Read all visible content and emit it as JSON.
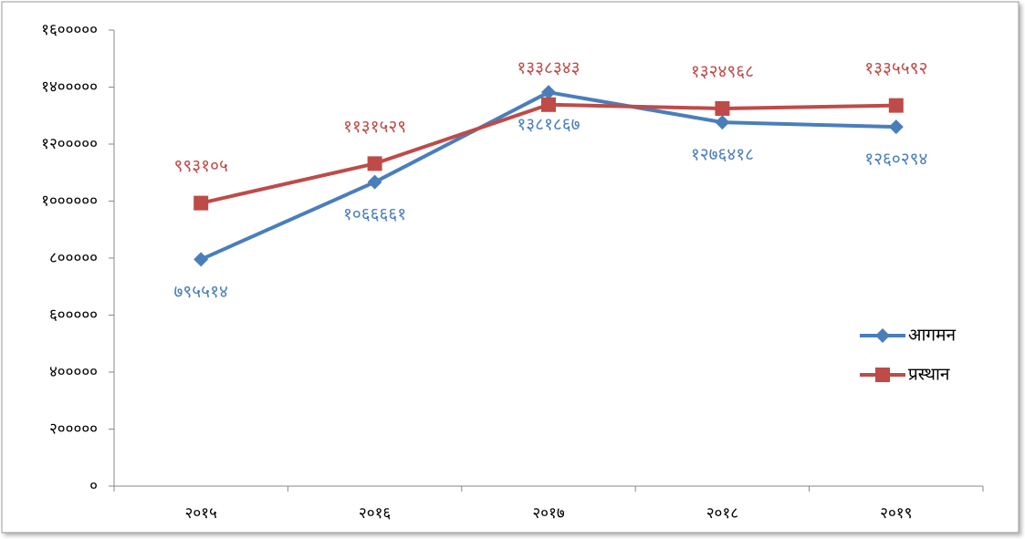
{
  "chart_data": {
    "type": "line",
    "categories": [
      "२०१५",
      "२०१६",
      "२०१७",
      "२०१८",
      "२०१९"
    ],
    "series": [
      {
        "name": "आगमन",
        "color": "#4a7ebb",
        "marker": "diamond",
        "label_position": "below",
        "values": [
          795514,
          1066661,
          1381867,
          1276418,
          1260294
        ],
        "value_labels": [
          "७९५५१४",
          "१०६६६६१",
          "१३८१८६७",
          "१२७६४१८",
          "१२६०२९४"
        ]
      },
      {
        "name": "प्रस्थान",
        "color": "#be4b48",
        "marker": "square",
        "label_position": "above",
        "values": [
          993105,
          1131529,
          1338343,
          1324968,
          1335592
        ],
        "value_labels": [
          "९९३१०५",
          "११३१५२९",
          "१३३८३४३",
          "१३२४९६८",
          "१३३५५९२"
        ]
      }
    ],
    "ylim": [
      0,
      1600000
    ],
    "yticks": [
      {
        "value": 0,
        "label": "०"
      },
      {
        "value": 200000,
        "label": "२०००००"
      },
      {
        "value": 400000,
        "label": "४०००००"
      },
      {
        "value": 600000,
        "label": "६०००००"
      },
      {
        "value": 800000,
        "label": "८०००००"
      },
      {
        "value": 1000000,
        "label": "१००००००"
      },
      {
        "value": 1200000,
        "label": "१२०००००"
      },
      {
        "value": 1400000,
        "label": "१४०००००"
      },
      {
        "value": 1600000,
        "label": "१६०००००"
      }
    ],
    "grid": false,
    "legend": "right"
  }
}
